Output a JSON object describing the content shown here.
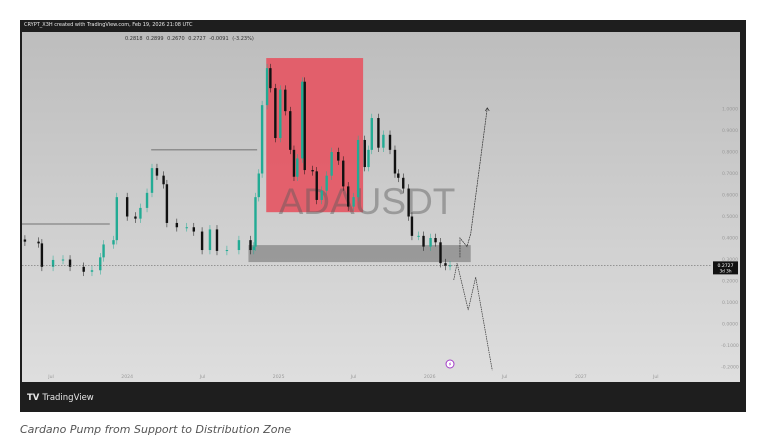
{
  "header": {
    "byline": "CRYPT_X3H created with TradingView.com, Feb 19, 2026 21:08 UTC",
    "ohlc": "0.2818   0.2899   0.2670   0.2727   -0.0091 (-3.23%)"
  },
  "footer": {
    "brand": "TradingView",
    "logo": "TV"
  },
  "caption": "Cardano Pump from Support to Distribution Zone",
  "colors": {
    "up": "#22ab94",
    "down": "#111111",
    "zone_red": "#e45a66",
    "zone_gray": "#8f8f8f"
  },
  "chart_data": {
    "type": "candlestick",
    "symbol_watermark": "ADAUSDT",
    "ylim": [
      -0.25,
      1.3
    ],
    "y_ticks": [
      "1.0000",
      "0.9000",
      "0.8000",
      "0.7000",
      "0.6000",
      "0.5000",
      "0.4000",
      "0.3000",
      "0.2000",
      "0.1000",
      "0.0000",
      "-0.1000",
      "-0.2000"
    ],
    "y_tick_values": [
      1.0,
      0.9,
      0.8,
      0.7,
      0.6,
      0.5,
      0.4,
      0.3,
      0.2,
      0.1,
      0.0,
      -0.1,
      -0.2
    ],
    "x_ticks": [
      {
        "label": "Jul",
        "date": "2023-07-01"
      },
      {
        "label": "2024",
        "date": "2024-01-01"
      },
      {
        "label": "Jul",
        "date": "2024-07-01"
      },
      {
        "label": "2025",
        "date": "2025-01-01"
      },
      {
        "label": "Jul",
        "date": "2025-07-01"
      },
      {
        "label": "2026",
        "date": "2026-01-01"
      },
      {
        "label": "Jul",
        "date": "2026-07-01"
      },
      {
        "label": "2027",
        "date": "2027-01-01"
      },
      {
        "label": "Jul",
        "date": "2027-07-01"
      }
    ],
    "last_price": {
      "value": 0.2727,
      "label": "0.2727",
      "countdown": "3d 3h"
    },
    "closes": [
      [
        "2023-04-29",
        0.383
      ],
      [
        "2023-06-01",
        0.375
      ],
      [
        "2023-06-09",
        0.266
      ],
      [
        "2023-07-06",
        0.298
      ],
      [
        "2023-07-30",
        0.3
      ],
      [
        "2023-08-16",
        0.266
      ],
      [
        "2023-09-18",
        0.243
      ],
      [
        "2023-10-08",
        0.25
      ],
      [
        "2023-10-28",
        0.31
      ],
      [
        "2023-11-05",
        0.37
      ],
      [
        "2023-11-29",
        0.39
      ],
      [
        "2023-12-07",
        0.59
      ],
      [
        "2024-01-01",
        0.5
      ],
      [
        "2024-01-21",
        0.49
      ],
      [
        "2024-02-02",
        0.54
      ],
      [
        "2024-02-18",
        0.61
      ],
      [
        "2024-03-01",
        0.725
      ],
      [
        "2024-03-13",
        0.69
      ],
      [
        "2024-03-29",
        0.65
      ],
      [
        "2024-04-06",
        0.47
      ],
      [
        "2024-04-30",
        0.45
      ],
      [
        "2024-05-24",
        0.45
      ],
      [
        "2024-06-10",
        0.43
      ],
      [
        "2024-06-30",
        0.344
      ],
      [
        "2024-07-19",
        0.44
      ],
      [
        "2024-08-05",
        0.34
      ],
      [
        "2024-08-29",
        0.344
      ],
      [
        "2024-09-27",
        0.39
      ],
      [
        "2024-10-25",
        0.344
      ],
      [
        "2024-11-02",
        0.36
      ],
      [
        "2024-11-06",
        0.59
      ],
      [
        "2024-11-14",
        0.7
      ],
      [
        "2024-11-22",
        1.018
      ],
      [
        "2024-12-04",
        1.19
      ],
      [
        "2024-12-12",
        1.097
      ],
      [
        "2024-12-24",
        0.865
      ],
      [
        "2025-01-05",
        1.09
      ],
      [
        "2025-01-17",
        0.99
      ],
      [
        "2025-01-29",
        0.81
      ],
      [
        "2025-02-07",
        0.685
      ],
      [
        "2025-02-15",
        0.77
      ],
      [
        "2025-02-27",
        1.127
      ],
      [
        "2025-03-05",
        0.716
      ],
      [
        "2025-03-24",
        0.71
      ],
      [
        "2025-04-03",
        0.577
      ],
      [
        "2025-04-15",
        0.62
      ],
      [
        "2025-04-27",
        0.69
      ],
      [
        "2025-05-09",
        0.8
      ],
      [
        "2025-05-25",
        0.76
      ],
      [
        "2025-06-06",
        0.64
      ],
      [
        "2025-06-18",
        0.546
      ],
      [
        "2025-07-01",
        0.59
      ],
      [
        "2025-07-12",
        0.856
      ],
      [
        "2025-07-28",
        0.73
      ],
      [
        "2025-08-06",
        0.81
      ],
      [
        "2025-08-14",
        0.958
      ],
      [
        "2025-08-30",
        0.82
      ],
      [
        "2025-09-11",
        0.88
      ],
      [
        "2025-09-27",
        0.81
      ],
      [
        "2025-10-09",
        0.7
      ],
      [
        "2025-10-17",
        0.68
      ],
      [
        "2025-10-29",
        0.63
      ],
      [
        "2025-11-11",
        0.5
      ],
      [
        "2025-11-19",
        0.41
      ],
      [
        "2025-12-05",
        0.41
      ],
      [
        "2025-12-17",
        0.36
      ],
      [
        "2026-01-03",
        0.4
      ],
      [
        "2026-01-15",
        0.38
      ],
      [
        "2026-01-27",
        0.283
      ],
      [
        "2026-02-08",
        0.27
      ],
      [
        "2026-02-19",
        0.2727
      ]
    ],
    "zones": [
      {
        "kind": "distribution",
        "from": "2024-12-02",
        "to": "2025-07-24",
        "top": 1.237,
        "bottom": 0.52
      },
      {
        "kind": "support",
        "from": "2024-10-20",
        "to": "2026-04-10",
        "top": 0.367,
        "bottom": 0.288
      }
    ],
    "levels": [
      {
        "from": "2023-04-01",
        "to": "2023-11-20",
        "price": 0.465
      },
      {
        "from": "2024-02-28",
        "to": "2024-11-10",
        "price": 0.81
      }
    ],
    "projections": [
      {
        "kind": "bullish",
        "points": [
          [
            "2026-03-15",
            0.31
          ],
          [
            "2026-03-15",
            0.4
          ],
          [
            "2026-04-01",
            0.36
          ],
          [
            "2026-04-10",
            0.42
          ],
          [
            "2026-05-20",
            1.005
          ]
        ]
      },
      {
        "kind": "bearish",
        "points": [
          [
            "2026-02-28",
            0.205
          ],
          [
            "2026-03-08",
            0.283
          ],
          [
            "2026-04-04",
            0.065
          ],
          [
            "2026-04-22",
            0.218
          ],
          [
            "2026-06-01",
            -0.215
          ]
        ]
      }
    ]
  }
}
